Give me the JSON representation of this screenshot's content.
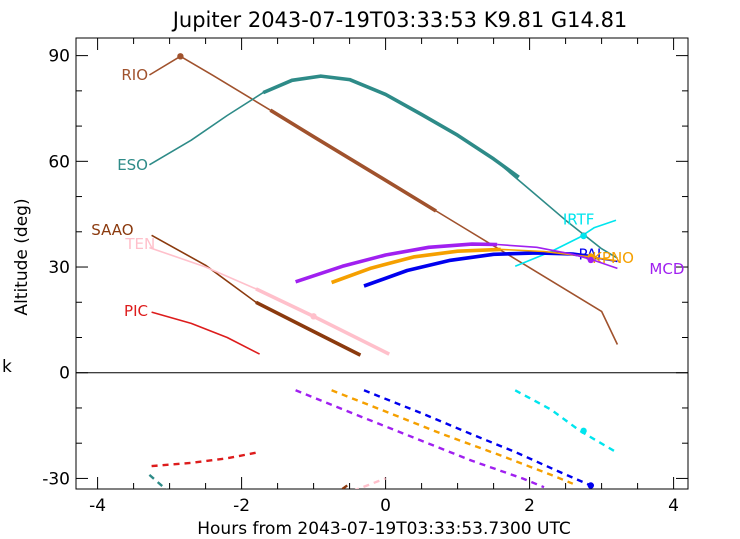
{
  "chart_data": {
    "type": "line",
    "title": "Jupiter 2043-07-19T03:33:53  K9.81  G14.81",
    "xlabel": "Hours from 2043-07-19T03:33:53.7300 UTC",
    "ylabel": "Altitude (deg)",
    "xlim": [
      -4.3,
      4.2
    ],
    "ylim": [
      -33,
      95
    ],
    "xticks": [
      -4,
      -2,
      0,
      2,
      4
    ],
    "yticks": [
      -30,
      0,
      30,
      60,
      90
    ],
    "stray_label": "k",
    "series": [
      {
        "name": "RIO",
        "color": "#a0522d",
        "label_at": [
          -3.3,
          84.5
        ],
        "segments": [
          {
            "style": "thin",
            "points": [
              [
                -3.28,
                84.5
              ],
              [
                -2.85,
                89.8
              ],
              [
                -2.4,
                84.4
              ],
              [
                -1.6,
                74.5
              ],
              [
                -1.0,
                67.0
              ],
              [
                0,
                54.6
              ],
              [
                1.0,
                42.2
              ],
              [
                2.0,
                29.8
              ],
              [
                3.0,
                17.4
              ],
              [
                3.22,
                8.0
              ]
            ]
          },
          {
            "style": "thick",
            "points": [
              [
                -1.6,
                74.5
              ],
              [
                -1.0,
                67.0
              ],
              [
                0,
                54.6
              ],
              [
                0.7,
                45.9
              ]
            ]
          }
        ]
      },
      {
        "name": "ESO",
        "color": "#2e8b88",
        "label_at": [
          -3.3,
          59
        ],
        "segments": [
          {
            "style": "thin",
            "points": [
              [
                -3.28,
                59.0
              ],
              [
                -2.7,
                66.0
              ],
              [
                -2.2,
                73.0
              ],
              [
                -1.7,
                79.5
              ],
              [
                -1.3,
                83.0
              ],
              [
                -0.9,
                84.2
              ],
              [
                -0.5,
                83.2
              ],
              [
                0,
                79.0
              ],
              [
                0.5,
                73.3
              ],
              [
                1.0,
                67.4
              ],
              [
                1.5,
                60.7
              ],
              [
                2.0,
                52.0
              ],
              [
                2.5,
                43.3
              ],
              [
                3.0,
                35.2
              ],
              [
                3.22,
                32.5
              ]
            ]
          },
          {
            "style": "thick",
            "points": [
              [
                -1.7,
                79.5
              ],
              [
                -1.3,
                83.0
              ],
              [
                -0.9,
                84.2
              ],
              [
                -0.5,
                83.2
              ],
              [
                0,
                79.0
              ],
              [
                0.5,
                73.3
              ],
              [
                1.0,
                67.4
              ],
              [
                1.5,
                60.7
              ],
              [
                1.85,
                55.5
              ]
            ]
          },
          {
            "style": "dashed",
            "points": [
              [
                -3.28,
                -29.0
              ],
              [
                -3.0,
                -34.0
              ]
            ]
          }
        ]
      },
      {
        "name": "SAAO",
        "color": "#8b3a0e",
        "label_at": [
          -3.5,
          40.5
        ],
        "segments": [
          {
            "style": "thin",
            "points": [
              [
                -3.25,
                39.0
              ],
              [
                -2.5,
                30.5
              ],
              [
                -1.8,
                20.0
              ],
              [
                -1.0,
                11.7
              ],
              [
                -0.35,
                5.0
              ]
            ]
          },
          {
            "style": "thick",
            "points": [
              [
                -1.8,
                20.0
              ],
              [
                -1.0,
                11.7
              ],
              [
                -0.35,
                5.0
              ]
            ]
          },
          {
            "style": "dashed",
            "points": [
              [
                -0.6,
                -33.0
              ],
              [
                -0.5,
                -31.5
              ]
            ]
          }
        ]
      },
      {
        "name": "TEN",
        "color": "#ffc0cb",
        "label_at": [
          -3.2,
          36.5
        ],
        "segments": [
          {
            "style": "thin",
            "points": [
              [
                -3.28,
                35.5
              ],
              [
                -2.5,
                30.0
              ],
              [
                -1.8,
                23.8
              ],
              [
                -1.0,
                16.0
              ],
              [
                0.05,
                5.3
              ]
            ]
          },
          {
            "style": "thick",
            "points": [
              [
                -1.8,
                23.8
              ],
              [
                -1.0,
                16.0
              ],
              [
                0.05,
                5.3
              ]
            ]
          },
          {
            "style": "dashed",
            "points": [
              [
                -0.45,
                -33.5
              ],
              [
                0.0,
                -30.0
              ]
            ]
          }
        ]
      },
      {
        "name": "PIC",
        "color": "#dd1c1c",
        "label_at": [
          -3.3,
          17.5
        ],
        "segments": [
          {
            "style": "thin",
            "points": [
              [
                -3.25,
                17.2
              ],
              [
                -2.7,
                14.0
              ],
              [
                -2.2,
                10.0
              ],
              [
                -1.75,
                5.3
              ]
            ]
          },
          {
            "style": "dashed",
            "points": [
              [
                -3.25,
                -26.5
              ],
              [
                -2.7,
                -25.6
              ],
              [
                -2.2,
                -24.3
              ],
              [
                -1.75,
                -22.5
              ]
            ]
          }
        ]
      },
      {
        "name": "IRTF",
        "color": "#00e5ee",
        "label_at": [
          2.9,
          43.5
        ],
        "segments": [
          {
            "style": "thin",
            "points": [
              [
                1.8,
                30.2
              ],
              [
                2.3,
                34.4
              ],
              [
                2.7,
                38.5
              ],
              [
                2.9,
                41.2
              ],
              [
                3.2,
                43.3
              ]
            ]
          },
          {
            "style": "dashed",
            "points": [
              [
                1.8,
                -5.0
              ],
              [
                2.3,
                -10.5
              ],
              [
                2.7,
                -16.5
              ],
              [
                3.2,
                -22.5
              ]
            ]
          }
        ]
      },
      {
        "name": "PAL",
        "color": "#0000ee",
        "label_at": [
          3.05,
          33.5
        ],
        "segments": [
          {
            "style": "thick",
            "points": [
              [
                -0.3,
                24.6
              ],
              [
                0.3,
                29.0
              ],
              [
                0.9,
                31.9
              ],
              [
                1.5,
                33.6
              ],
              [
                2.1,
                34.0
              ],
              [
                2.6,
                33.7
              ],
              [
                2.85,
                33.0
              ]
            ]
          },
          {
            "style": "thin",
            "points": [
              [
                2.85,
                33.0
              ],
              [
                3.0,
                32.3
              ],
              [
                3.22,
                31.6
              ]
            ]
          },
          {
            "style": "dashed",
            "points": [
              [
                -0.3,
                -5.0
              ],
              [
                0.5,
                -11.5
              ],
              [
                1.2,
                -17.5
              ],
              [
                1.8,
                -22.5
              ],
              [
                2.4,
                -28.0
              ],
              [
                2.85,
                -32.0
              ]
            ]
          }
        ]
      },
      {
        "name": "KPNO",
        "color": "#f5a000",
        "label_at": [
          3.45,
          32.5
        ],
        "segments": [
          {
            "style": "thick",
            "points": [
              [
                -0.75,
                25.6
              ],
              [
                -0.2,
                29.7
              ],
              [
                0.4,
                32.9
              ],
              [
                1.0,
                34.5
              ],
              [
                1.6,
                35.0
              ]
            ]
          },
          {
            "style": "thin",
            "points": [
              [
                1.6,
                35.0
              ],
              [
                2.2,
                34.4
              ],
              [
                2.8,
                33.0
              ],
              [
                3.2,
                31.8
              ]
            ]
          },
          {
            "style": "dashed",
            "points": [
              [
                -0.75,
                -5.0
              ],
              [
                0.0,
                -11.0
              ],
              [
                0.8,
                -17.5
              ],
              [
                1.6,
                -23.5
              ],
              [
                2.3,
                -29.0
              ],
              [
                2.6,
                -31.5
              ]
            ]
          }
        ]
      },
      {
        "name": "MCD",
        "color": "#a020f0",
        "label_at": [
          4.15,
          29.5
        ],
        "segments": [
          {
            "style": "thick",
            "points": [
              [
                -1.25,
                25.8
              ],
              [
                -0.6,
                30.2
              ],
              [
                0,
                33.4
              ],
              [
                0.6,
                35.6
              ],
              [
                1.2,
                36.5
              ],
              [
                1.55,
                36.4
              ]
            ]
          },
          {
            "style": "thin",
            "points": [
              [
                1.55,
                36.4
              ],
              [
                2.1,
                35.6
              ],
              [
                2.6,
                33.6
              ],
              [
                2.85,
                32.2
              ],
              [
                3.22,
                29.6
              ]
            ]
          },
          {
            "style": "dashed",
            "points": [
              [
                -1.25,
                -5.0
              ],
              [
                -0.4,
                -12.0
              ],
              [
                0.4,
                -18.5
              ],
              [
                1.2,
                -25.0
              ],
              [
                1.9,
                -30.0
              ],
              [
                2.2,
                -32.5
              ]
            ]
          }
        ]
      }
    ],
    "markers": [
      {
        "color": "#a0522d",
        "points": [
          [
            -2.85,
            89.8
          ]
        ]
      },
      {
        "color": "#2e8b88",
        "points": [
          [
            2.75,
            38.9
          ]
        ]
      },
      {
        "color": "#ffc0cb",
        "points": [
          [
            -1.0,
            16.0
          ]
        ]
      },
      {
        "color": "#f5a000",
        "points": [
          [
            2.85,
            33.0
          ]
        ]
      },
      {
        "color": "#a020f0",
        "points": [
          [
            2.85,
            32.0
          ]
        ]
      },
      {
        "color": "#00e5ee",
        "points": [
          [
            2.75,
            38.8
          ],
          [
            2.75,
            -16.5
          ]
        ]
      },
      {
        "color": "#0000ee",
        "points": [
          [
            2.85,
            -32.0
          ]
        ]
      }
    ]
  }
}
